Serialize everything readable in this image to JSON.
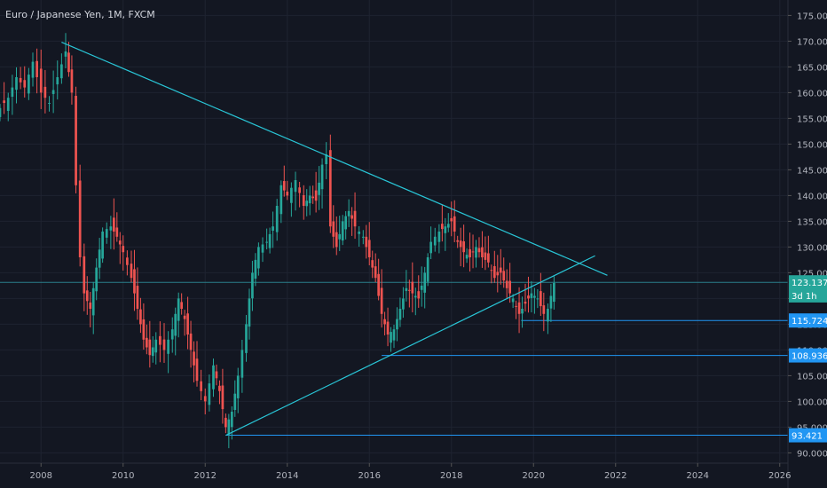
{
  "header": {
    "title": "Euro / Japanese Yen, 1M, FXCM"
  },
  "colors": {
    "background": "#131722",
    "grid": "#1e2330",
    "axis_text": "#b2b5be",
    "up": "#26a69a",
    "down": "#ef5350",
    "trendline": "#29c5d6",
    "hline": "#2196f3",
    "price_line": "#2a7f8a"
  },
  "chart_data": {
    "type": "candlestick",
    "title": "Euro / Japanese Yen, 1M, FXCM",
    "x_ticks": [
      "2008",
      "2010",
      "2012",
      "2014",
      "2016",
      "2018",
      "2020",
      "2022",
      "2024",
      "2026"
    ],
    "y_ticks": [
      "90.000",
      "95.000",
      "100.000",
      "105.000",
      "110.000",
      "115.000",
      "120.000",
      "125.000",
      "130.000",
      "135.000",
      "140.000",
      "145.000",
      "150.000",
      "155.000",
      "160.000",
      "165.000",
      "170.000",
      "175.000"
    ],
    "ylim": [
      88,
      178
    ],
    "xlim": [
      2007.0,
      2026.2
    ],
    "grid": true,
    "price_labels": [
      {
        "value": 123.137,
        "text": "123.137",
        "kind": "current"
      },
      {
        "value": 120.6,
        "text": "3d 1h",
        "kind": "countdown"
      },
      {
        "value": 115.724,
        "text": "115.724",
        "kind": "level"
      },
      {
        "value": 108.936,
        "text": "108.936",
        "kind": "level"
      },
      {
        "value": 93.421,
        "text": "93.421",
        "kind": "level"
      }
    ],
    "trendlines": [
      {
        "x": [
          2008.5,
          2021.8
        ],
        "y": [
          169.8,
          124.5
        ]
      },
      {
        "x": [
          2012.5,
          2021.5
        ],
        "y": [
          93.4,
          128.3
        ]
      }
    ],
    "horizontal_levels": [
      {
        "x_start": 2019.7,
        "y": 115.724
      },
      {
        "x_start": 2016.3,
        "y": 108.936
      },
      {
        "x_start": 2012.5,
        "y": 93.421
      }
    ],
    "close_series": [
      {
        "t": 2007.0,
        "c": 157
      },
      {
        "t": 2007.2,
        "c": 159
      },
      {
        "t": 2007.4,
        "c": 163
      },
      {
        "t": 2007.6,
        "c": 161
      },
      {
        "t": 2007.8,
        "c": 166
      },
      {
        "t": 2008.0,
        "c": 160
      },
      {
        "t": 2008.2,
        "c": 158
      },
      {
        "t": 2008.4,
        "c": 163
      },
      {
        "t": 2008.6,
        "c": 168
      },
      {
        "t": 2008.75,
        "c": 160
      },
      {
        "t": 2008.85,
        "c": 142
      },
      {
        "t": 2008.95,
        "c": 128
      },
      {
        "t": 2009.05,
        "c": 121
      },
      {
        "t": 2009.2,
        "c": 118
      },
      {
        "t": 2009.35,
        "c": 126
      },
      {
        "t": 2009.5,
        "c": 133
      },
      {
        "t": 2009.7,
        "c": 134
      },
      {
        "t": 2009.85,
        "c": 132
      },
      {
        "t": 2010.0,
        "c": 129
      },
      {
        "t": 2010.2,
        "c": 124
      },
      {
        "t": 2010.35,
        "c": 118
      },
      {
        "t": 2010.5,
        "c": 112
      },
      {
        "t": 2010.65,
        "c": 109
      },
      {
        "t": 2010.8,
        "c": 112
      },
      {
        "t": 2011.0,
        "c": 110
      },
      {
        "t": 2011.2,
        "c": 114
      },
      {
        "t": 2011.35,
        "c": 120
      },
      {
        "t": 2011.5,
        "c": 116
      },
      {
        "t": 2011.65,
        "c": 110
      },
      {
        "t": 2011.8,
        "c": 104
      },
      {
        "t": 2012.0,
        "c": 100
      },
      {
        "t": 2012.2,
        "c": 107
      },
      {
        "t": 2012.35,
        "c": 102
      },
      {
        "t": 2012.5,
        "c": 95
      },
      {
        "t": 2012.65,
        "c": 98
      },
      {
        "t": 2012.8,
        "c": 105
      },
      {
        "t": 2013.0,
        "c": 115
      },
      {
        "t": 2013.15,
        "c": 125
      },
      {
        "t": 2013.3,
        "c": 130
      },
      {
        "t": 2013.5,
        "c": 131
      },
      {
        "t": 2013.65,
        "c": 134
      },
      {
        "t": 2013.85,
        "c": 142
      },
      {
        "t": 2014.0,
        "c": 140
      },
      {
        "t": 2014.2,
        "c": 143
      },
      {
        "t": 2014.4,
        "c": 138
      },
      {
        "t": 2014.55,
        "c": 140
      },
      {
        "t": 2014.7,
        "c": 139
      },
      {
        "t": 2014.85,
        "c": 146
      },
      {
        "t": 2014.95,
        "c": 148
      },
      {
        "t": 2015.05,
        "c": 134
      },
      {
        "t": 2015.2,
        "c": 130
      },
      {
        "t": 2015.35,
        "c": 135
      },
      {
        "t": 2015.5,
        "c": 137
      },
      {
        "t": 2015.65,
        "c": 134
      },
      {
        "t": 2015.85,
        "c": 132
      },
      {
        "t": 2016.0,
        "c": 128
      },
      {
        "t": 2016.15,
        "c": 124
      },
      {
        "t": 2016.3,
        "c": 117
      },
      {
        "t": 2016.45,
        "c": 113
      },
      {
        "t": 2016.6,
        "c": 114
      },
      {
        "t": 2016.75,
        "c": 118
      },
      {
        "t": 2016.9,
        "c": 122
      },
      {
        "t": 2017.05,
        "c": 121
      },
      {
        "t": 2017.2,
        "c": 120
      },
      {
        "t": 2017.35,
        "c": 125
      },
      {
        "t": 2017.5,
        "c": 131
      },
      {
        "t": 2017.7,
        "c": 133
      },
      {
        "t": 2017.85,
        "c": 134
      },
      {
        "t": 2018.0,
        "c": 135
      },
      {
        "t": 2018.15,
        "c": 131
      },
      {
        "t": 2018.3,
        "c": 129
      },
      {
        "t": 2018.45,
        "c": 128
      },
      {
        "t": 2018.6,
        "c": 130
      },
      {
        "t": 2018.75,
        "c": 128
      },
      {
        "t": 2018.9,
        "c": 127
      },
      {
        "t": 2019.05,
        "c": 124
      },
      {
        "t": 2019.2,
        "c": 125
      },
      {
        "t": 2019.35,
        "c": 122
      },
      {
        "t": 2019.5,
        "c": 120
      },
      {
        "t": 2019.65,
        "c": 117
      },
      {
        "t": 2019.8,
        "c": 119
      },
      {
        "t": 2019.95,
        "c": 121
      },
      {
        "t": 2020.1,
        "c": 120
      },
      {
        "t": 2020.25,
        "c": 117
      },
      {
        "t": 2020.35,
        "c": 118
      },
      {
        "t": 2020.5,
        "c": 123
      }
    ]
  }
}
